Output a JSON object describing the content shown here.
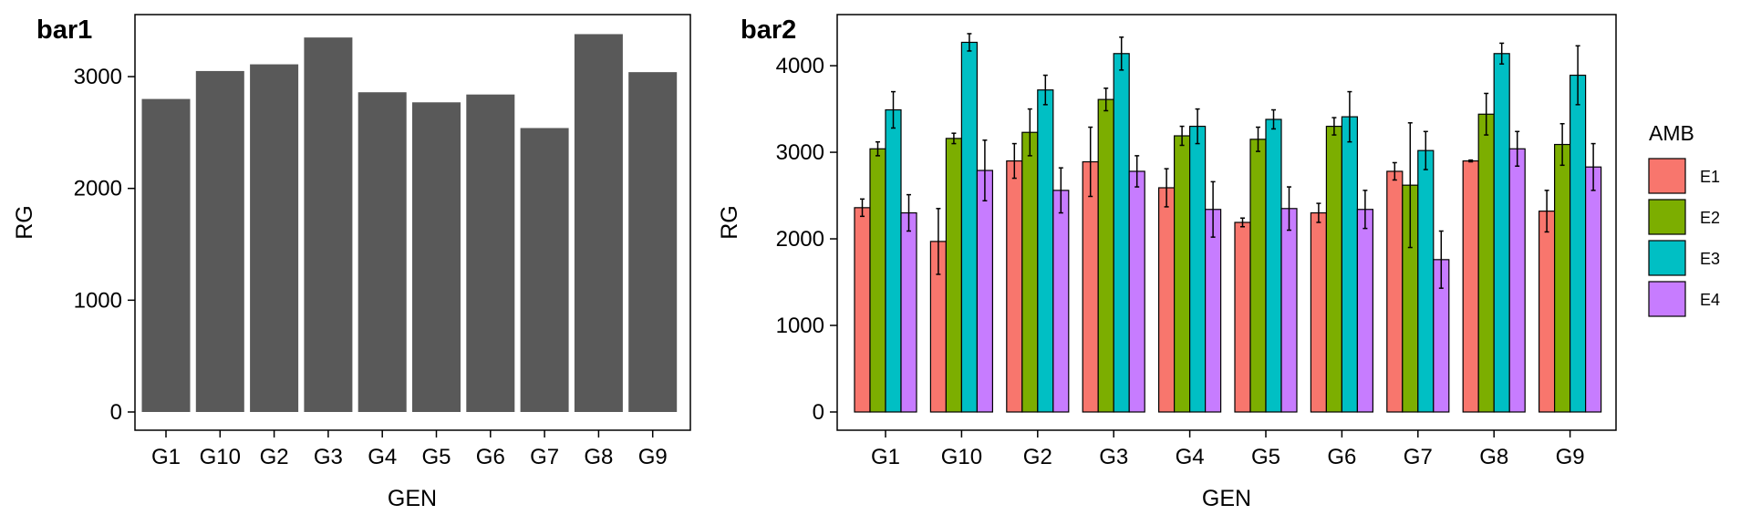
{
  "chart_data": [
    {
      "type": "bar",
      "title": "bar1",
      "xlabel": "GEN",
      "ylabel": "RG",
      "categories": [
        "G1",
        "G10",
        "G2",
        "G3",
        "G4",
        "G5",
        "G6",
        "G7",
        "G8",
        "G9"
      ],
      "values": [
        2800,
        3050,
        3110,
        3350,
        2860,
        2770,
        2840,
        2540,
        3380,
        3040
      ],
      "ylim": [
        0,
        3400
      ],
      "yticks": [
        0,
        1000,
        2000,
        3000
      ],
      "bar_color": "#595959",
      "grid": false,
      "legend": "none"
    },
    {
      "type": "bar",
      "title": "bar2",
      "xlabel": "GEN",
      "ylabel": "RG",
      "categories": [
        "G1",
        "G10",
        "G2",
        "G3",
        "G4",
        "G5",
        "G6",
        "G7",
        "G8",
        "G9"
      ],
      "series": [
        {
          "name": "E1",
          "color": "#F8766D",
          "values": [
            2360,
            1970,
            2900,
            2890,
            2590,
            2190,
            2300,
            2780,
            2900,
            2320
          ],
          "errors": [
            100,
            380,
            200,
            400,
            220,
            50,
            110,
            100,
            10,
            240
          ]
        },
        {
          "name": "E2",
          "color": "#7CAE00",
          "values": [
            3040,
            3160,
            3230,
            3610,
            3190,
            3150,
            3300,
            2620,
            3440,
            3090
          ],
          "errors": [
            80,
            60,
            270,
            130,
            110,
            140,
            100,
            720,
            240,
            240
          ]
        },
        {
          "name": "E3",
          "color": "#00BFC4",
          "values": [
            3490,
            4270,
            3720,
            4140,
            3300,
            3380,
            3410,
            3020,
            4140,
            3890
          ],
          "errors": [
            210,
            100,
            170,
            190,
            200,
            110,
            290,
            220,
            120,
            340
          ]
        },
        {
          "name": "E4",
          "color": "#C77CFF",
          "values": [
            2300,
            2790,
            2560,
            2780,
            2340,
            2350,
            2340,
            1760,
            3040,
            2830
          ],
          "errors": [
            210,
            350,
            260,
            180,
            320,
            250,
            220,
            330,
            200,
            270
          ]
        }
      ],
      "ylim": [
        0,
        4380
      ],
      "yticks": [
        0,
        1000,
        2000,
        3000,
        4000
      ],
      "error_bars": true,
      "grid": false,
      "legend": {
        "title": "AMB",
        "position": "right"
      }
    }
  ]
}
